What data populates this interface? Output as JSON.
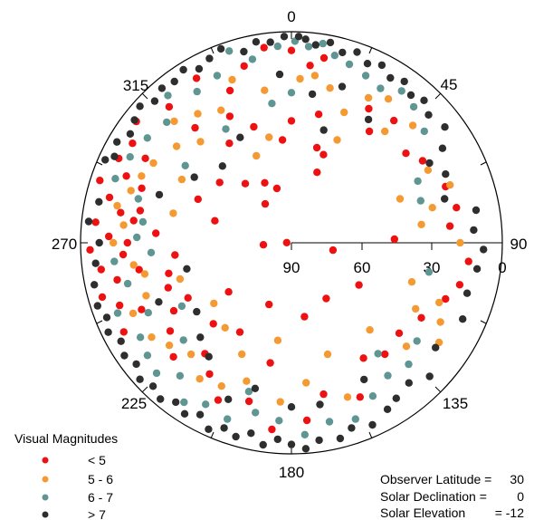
{
  "chart_data": {
    "type": "scatter",
    "projection": "polar-sky",
    "angle_axis": {
      "labels": [
        "0",
        "45",
        "90",
        "135",
        "180",
        "225",
        "270",
        "315"
      ]
    },
    "radial_axis": {
      "ticks": [
        "90",
        "60",
        "30",
        "0"
      ],
      "range": [
        0,
        90
      ]
    },
    "legend": {
      "title": "Visual Magnitudes",
      "placement": "bottom-left",
      "entries": [
        {
          "label": "< 5",
          "color": "#ee1111"
        },
        {
          "label": "5 - 6",
          "color": "#f59a32"
        },
        {
          "label": "6 - 7",
          "color": "#5f9592"
        },
        {
          "label": "> 7",
          "color": "#2e2e2e"
        }
      ]
    },
    "annotations": [
      {
        "label": "Observer Latitude =",
        "value": "30"
      },
      {
        "label": "Solar Declination =",
        "value": "0"
      },
      {
        "label": "Solar Elevation",
        "value": "= -12"
      }
    ],
    "series": [
      {
        "color": "#ee1111",
        "points": [
          [
            0,
            8
          ],
          [
            6,
            14
          ],
          [
            10,
            10
          ],
          [
            352,
            6
          ],
          [
            345,
            12
          ],
          [
            338,
            20
          ],
          [
            330,
            9
          ],
          [
            318,
            12
          ],
          [
            308,
            6
          ],
          [
            302,
            10
          ],
          [
            296,
            8
          ],
          [
            292,
            14
          ],
          [
            288,
            4
          ],
          [
            284,
            10
          ],
          [
            280,
            16
          ],
          [
            276,
            6
          ],
          [
            272,
            12
          ],
          [
            268,
            4
          ],
          [
            266,
            18
          ],
          [
            262,
            8
          ],
          [
            258,
            14
          ],
          [
            254,
            6
          ],
          [
            250,
            12
          ],
          [
            246,
            20
          ],
          [
            242,
            9
          ],
          [
            300,
            18
          ],
          [
            290,
            22
          ],
          [
            282,
            24
          ],
          [
            278,
            22
          ],
          [
            270,
            20
          ],
          [
            260,
            24
          ],
          [
            320,
            26
          ],
          [
            334,
            30
          ],
          [
            342,
            38
          ],
          [
            328,
            40
          ],
          [
            355,
            46
          ],
          [
            15,
            48
          ],
          [
            20,
            58
          ],
          [
            30,
            24
          ],
          [
            40,
            22
          ],
          [
            52,
            28
          ],
          [
            58,
            24
          ],
          [
            70,
            20
          ],
          [
            78,
            18
          ],
          [
            84,
            22
          ],
          [
            96,
            14
          ],
          [
            104,
            16
          ],
          [
            110,
            20
          ],
          [
            120,
            26
          ],
          [
            130,
            30
          ],
          [
            140,
            28
          ],
          [
            148,
            32
          ],
          [
            156,
            18
          ],
          [
            168,
            24
          ],
          [
            175,
            14
          ],
          [
            186,
            10
          ],
          [
            195,
            20
          ],
          [
            205,
            16
          ],
          [
            212,
            24
          ],
          [
            218,
            30
          ],
          [
            226,
            20
          ],
          [
            234,
            26
          ],
          [
            240,
            32
          ],
          [
            250,
            34
          ],
          [
            256,
            36
          ],
          [
            264,
            40
          ],
          [
            266,
            78
          ],
          [
            272,
            88
          ],
          [
            295,
            46
          ],
          [
            310,
            50
          ],
          [
            322,
            58
          ],
          [
            336,
            62
          ],
          [
            345,
            66
          ],
          [
            0,
            38
          ],
          [
            12,
            34
          ],
          [
            20,
            50
          ],
          [
            35,
            32
          ],
          [
            88,
            46
          ],
          [
            100,
            72
          ],
          [
            122,
            56
          ],
          [
            148,
            62
          ],
          [
            170,
            58
          ],
          [
            190,
            38
          ],
          [
            200,
            62
          ],
          [
            210,
            46
          ],
          [
            224,
            42
          ],
          [
            232,
            56
          ],
          [
            242,
            40
          ],
          [
            326,
            70
          ],
          [
            286,
            56
          ],
          [
            274,
            32
          ]
        ]
      },
      {
        "color": "#f59a32",
        "points": [
          [
            3,
            20
          ],
          [
            8,
            18
          ],
          [
            14,
            22
          ],
          [
            22,
            30
          ],
          [
            28,
            20
          ],
          [
            34,
            16
          ],
          [
            40,
            28
          ],
          [
            46,
            18
          ],
          [
            350,
            24
          ],
          [
            340,
            16
          ],
          [
            332,
            26
          ],
          [
            324,
            22
          ],
          [
            316,
            18
          ],
          [
            310,
            26
          ],
          [
            300,
            22
          ],
          [
            294,
            20
          ],
          [
            288,
            18
          ],
          [
            282,
            14
          ],
          [
            276,
            18
          ],
          [
            270,
            14
          ],
          [
            262,
            22
          ],
          [
            258,
            26
          ],
          [
            250,
            24
          ],
          [
            246,
            16
          ],
          [
            62,
            24
          ],
          [
            70,
            18
          ],
          [
            76,
            28
          ],
          [
            82,
            34
          ],
          [
            90,
            18
          ],
          [
            112,
            22
          ],
          [
            118,
            18
          ],
          [
            124,
            14
          ],
          [
            132,
            24
          ],
          [
            160,
            20
          ],
          [
            174,
            30
          ],
          [
            184,
            22
          ],
          [
            198,
            28
          ],
          [
            206,
            22
          ],
          [
            214,
            20
          ],
          [
            222,
            26
          ],
          [
            230,
            22
          ],
          [
            236,
            18
          ],
          [
            348,
            44
          ],
          [
            24,
            42
          ],
          [
            68,
            40
          ],
          [
            108,
            36
          ],
          [
            118,
            30
          ],
          [
            138,
            40
          ],
          [
            162,
            40
          ],
          [
            188,
            48
          ],
          [
            204,
            38
          ],
          [
            218,
            44
          ],
          [
            232,
            48
          ],
          [
            252,
            40
          ],
          [
            284,
            38
          ],
          [
            300,
            36
          ],
          [
            318,
            32
          ],
          [
            338,
            50
          ]
        ]
      },
      {
        "color": "#5f9592",
        "points": [
          [
            1,
            4
          ],
          [
            5,
            6
          ],
          [
            9,
            4
          ],
          [
            13,
            8
          ],
          [
            18,
            10
          ],
          [
            24,
            12
          ],
          [
            30,
            14
          ],
          [
            36,
            10
          ],
          [
            42,
            12
          ],
          [
            50,
            16
          ],
          [
            356,
            6
          ],
          [
            348,
            10
          ],
          [
            342,
            4
          ],
          [
            336,
            12
          ],
          [
            328,
            14
          ],
          [
            320,
            8
          ],
          [
            314,
            16
          ],
          [
            306,
            14
          ],
          [
            298,
            12
          ],
          [
            290,
            10
          ],
          [
            286,
            22
          ],
          [
            278,
            26
          ],
          [
            272,
            24
          ],
          [
            264,
            14
          ],
          [
            256,
            18
          ],
          [
            248,
            10
          ],
          [
            244,
            22
          ],
          [
            238,
            14
          ],
          [
            232,
            12
          ],
          [
            226,
            10
          ],
          [
            220,
            16
          ],
          [
            214,
            8
          ],
          [
            208,
            12
          ],
          [
            200,
            10
          ],
          [
            192,
            16
          ],
          [
            184,
            14
          ],
          [
            176,
            8
          ],
          [
            168,
            12
          ],
          [
            160,
            10
          ],
          [
            152,
            16
          ],
          [
            144,
            20
          ],
          [
            136,
            18
          ],
          [
            64,
            30
          ],
          [
            72,
            32
          ],
          [
            102,
            30
          ],
          [
            128,
            22
          ],
          [
            142,
            30
          ],
          [
            196,
            24
          ],
          [
            228,
            28
          ],
          [
            240,
            36
          ],
          [
            266,
            30
          ],
          [
            306,
            34
          ],
          [
            330,
            34
          ],
          [
            0,
            26
          ],
          [
            352,
            30
          ]
        ]
      },
      {
        "color": "#2e2e2e",
        "points": [
          [
            2,
            2
          ],
          [
            4,
            3
          ],
          [
            7,
            5
          ],
          [
            11,
            3
          ],
          [
            15,
            6
          ],
          [
            19,
            4
          ],
          [
            23,
            7
          ],
          [
            27,
            5
          ],
          [
            31,
            8
          ],
          [
            35,
            6
          ],
          [
            39,
            9
          ],
          [
            43,
            7
          ],
          [
            47,
            10
          ],
          [
            53,
            8
          ],
          [
            58,
            14
          ],
          [
            358,
            2
          ],
          [
            354,
            4
          ],
          [
            350,
            3
          ],
          [
            346,
            6
          ],
          [
            340,
            2
          ],
          [
            336,
            4
          ],
          [
            332,
            6
          ],
          [
            328,
            3
          ],
          [
            324,
            5
          ],
          [
            320,
            4
          ],
          [
            316,
            6
          ],
          [
            312,
            3
          ],
          [
            308,
            5
          ],
          [
            304,
            7
          ],
          [
            300,
            4
          ],
          [
            296,
            6
          ],
          [
            294,
            3
          ],
          [
            282,
            6
          ],
          [
            276,
            3
          ],
          [
            264,
            6
          ],
          [
            258,
            4
          ],
          [
            252,
            3
          ],
          [
            248,
            5
          ],
          [
            244,
            3
          ],
          [
            240,
            6
          ],
          [
            236,
            4
          ],
          [
            232,
            6
          ],
          [
            228,
            3
          ],
          [
            224,
            5
          ],
          [
            220,
            3
          ],
          [
            216,
            6
          ],
          [
            212,
            4
          ],
          [
            208,
            7
          ],
          [
            204,
            3
          ],
          [
            200,
            6
          ],
          [
            196,
            4
          ],
          [
            192,
            7
          ],
          [
            188,
            3
          ],
          [
            184,
            6
          ],
          [
            180,
            4
          ],
          [
            176,
            2
          ],
          [
            172,
            5
          ],
          [
            166,
            4
          ],
          [
            162,
            7
          ],
          [
            156,
            5
          ],
          [
            150,
            8
          ],
          [
            146,
            10
          ],
          [
            140,
            12
          ],
          [
            134,
            8
          ],
          [
            126,
            14
          ],
          [
            60,
            22
          ],
          [
            66,
            18
          ],
          [
            74,
            22
          ],
          [
            80,
            10
          ],
          [
            86,
            12
          ],
          [
            92,
            8
          ],
          [
            98,
            10
          ],
          [
            106,
            12
          ],
          [
            114,
            10
          ],
          [
            152,
            24
          ],
          [
            170,
            20
          ],
          [
            180,
            20
          ],
          [
            194,
            26
          ],
          [
            202,
            18
          ],
          [
            216,
            30
          ],
          [
            224,
            34
          ],
          [
            234,
            40
          ],
          [
            246,
            28
          ],
          [
            256,
            44
          ],
          [
            270,
            8
          ],
          [
            290,
            30
          ],
          [
            304,
            40
          ],
          [
            318,
            46
          ],
          [
            334,
            40
          ],
          [
            356,
            18
          ],
          [
            8,
            26
          ],
          [
            18,
            20
          ],
          [
            32,
            28
          ],
          [
            16,
            40
          ]
        ]
      }
    ]
  }
}
